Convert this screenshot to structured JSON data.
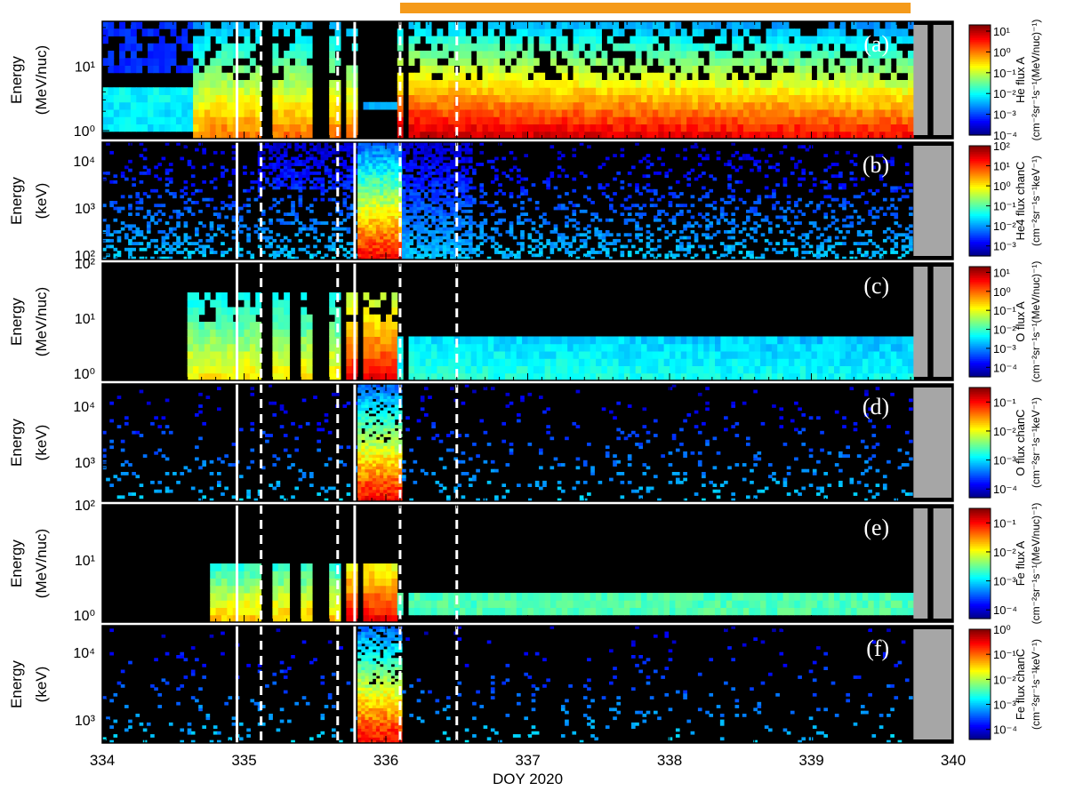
{
  "chart_data": {
    "type": "heatmap",
    "x_axis": {
      "label": "DOY 2020",
      "range": [
        334,
        340
      ],
      "ticks": [
        334,
        335,
        336,
        337,
        338,
        339,
        340
      ],
      "tick_labels": [
        "334",
        "335",
        "336",
        "337",
        "338",
        "339",
        "340"
      ]
    },
    "highlight_bar": {
      "color": "#f59a1a",
      "x_range": [
        336.1,
        339.7
      ]
    },
    "boundaries": {
      "solid": [
        334.95,
        335.78
      ],
      "dashed": [
        335.12,
        335.66,
        336.1,
        336.5
      ]
    },
    "data_gap": {
      "x_range": [
        339.72,
        340.0
      ],
      "color": "#a6a6a6"
    },
    "colormap": [
      "#00007f",
      "#0000ff",
      "#0080ff",
      "#00ffff",
      "#80ff80",
      "#ffff00",
      "#ff8000",
      "#ff0000",
      "#7f0000"
    ],
    "panels": [
      {
        "letter": "(a)",
        "ylabel": [
          "Energy",
          "(MeV/nuc)"
        ],
        "yscale": "log",
        "ylim": [
          0.75,
          50
        ],
        "yticks": [
          1,
          10
        ],
        "ytick_labels": [
          "10⁰",
          "10¹"
        ],
        "colorbar": {
          "title": "He flux A",
          "units": "(cm⁻²sr⁻¹s⁻¹(MeV/nuc)⁻¹)",
          "log_range": [
            -4,
            1.3
          ],
          "tick_labels": [
            "10¹",
            "10⁰",
            "10⁻¹",
            "10⁻²",
            "10⁻³",
            "10⁻⁴"
          ],
          "tick_exponents": [
            1,
            0,
            -1,
            -2,
            -3,
            -4
          ]
        },
        "instrument": "A"
      },
      {
        "letter": "(b)",
        "ylabel": [
          "Energy",
          "(keV)"
        ],
        "yscale": "log",
        "ylim": [
          80,
          25000
        ],
        "yticks": [
          100,
          1000,
          10000
        ],
        "ytick_labels": [
          "10²",
          "10³",
          "10⁴"
        ],
        "colorbar": {
          "title": "He4 flux chanC",
          "units": "(cm⁻²sr⁻¹s⁻¹keV⁻¹)",
          "log_range": [
            -3.5,
            2
          ],
          "tick_labels": [
            "10²",
            "10¹",
            "10⁰",
            "10⁻¹",
            "10⁻²",
            "10⁻³"
          ],
          "tick_exponents": [
            2,
            1,
            0,
            -1,
            -2,
            -3
          ]
        },
        "instrument": "C"
      },
      {
        "letter": "(c)",
        "ylabel": [
          "Energy",
          "(MeV/nuc)"
        ],
        "yscale": "log",
        "ylim": [
          0.75,
          100
        ],
        "yticks": [
          1,
          10,
          100
        ],
        "ytick_labels": [
          "10⁰",
          "10¹",
          "10²"
        ],
        "colorbar": {
          "title": "O flux A",
          "units": "(cm⁻²sr⁻¹s⁻¹(MeV/nuc)⁻¹)",
          "log_range": [
            -4.5,
            1.3
          ],
          "tick_labels": [
            "10¹",
            "10⁰",
            "10⁻¹",
            "10⁻²",
            "10⁻³",
            "10⁻⁴"
          ],
          "tick_exponents": [
            1,
            0,
            -1,
            -2,
            -3,
            -4
          ]
        },
        "instrument": "A"
      },
      {
        "letter": "(d)",
        "ylabel": [
          "Energy",
          "(keV)"
        ],
        "yscale": "log",
        "ylim": [
          200,
          25000
        ],
        "yticks": [
          1000,
          10000
        ],
        "ytick_labels": [
          "10³",
          "10⁴"
        ],
        "colorbar": {
          "title": "O flux chanC",
          "units": "(cm⁻²sr⁻¹s⁻¹keV⁻¹)",
          "log_range": [
            -4.3,
            -0.5
          ],
          "tick_labels": [
            "10⁻¹",
            "10⁻²",
            "10⁻³",
            "10⁻⁴"
          ],
          "tick_exponents": [
            -1,
            -2,
            -3,
            -4
          ]
        },
        "instrument": "C"
      },
      {
        "letter": "(e)",
        "ylabel": [
          "Energy",
          "(MeV/nuc)"
        ],
        "yscale": "log",
        "ylim": [
          0.75,
          100
        ],
        "yticks": [
          1,
          10,
          100
        ],
        "ytick_labels": [
          "10⁰",
          "10¹",
          "10²"
        ],
        "colorbar": {
          "title": "Fe flux A",
          "units": "(cm⁻²sr⁻¹s⁻¹(MeV/nuc)⁻¹)",
          "log_range": [
            -4.3,
            -0.5
          ],
          "tick_labels": [
            "10⁻¹",
            "10⁻²",
            "10⁻³",
            "10⁻⁴"
          ],
          "tick_exponents": [
            -1,
            -2,
            -3,
            -4
          ]
        },
        "instrument": "A"
      },
      {
        "letter": "(f)",
        "ylabel": [
          "Energy",
          "(keV)"
        ],
        "yscale": "log",
        "ylim": [
          450,
          25000
        ],
        "yticks": [
          1000,
          10000
        ],
        "ytick_labels": [
          "10³",
          "10⁴"
        ],
        "colorbar": {
          "title": "Fe flux chanC",
          "units": "(cm⁻²sr⁻¹s⁻¹keV⁻¹)",
          "log_range": [
            -4.4,
            0
          ],
          "tick_labels": [
            "10⁰",
            "10⁻¹",
            "10⁻²",
            "10⁻³",
            "10⁻⁴"
          ],
          "tick_exponents": [
            0,
            -1,
            -2,
            -3,
            -4
          ]
        },
        "instrument": "C"
      }
    ]
  }
}
